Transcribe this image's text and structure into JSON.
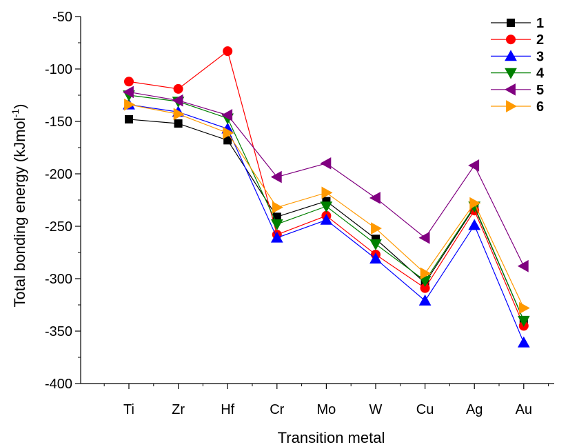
{
  "chart_data": {
    "type": "line",
    "xlabel": "Transition metal",
    "ylabel": "Total bonding energy (kJmol",
    "ylabel_superscript": "-1",
    "ylabel_suffix": ")",
    "categories": [
      "Ti",
      "Zr",
      "Hf",
      "Cr",
      "Mo",
      "W",
      "Cu",
      "Ag",
      "Au"
    ],
    "ylim": [
      -400,
      -50
    ],
    "yticks": [
      -400,
      -350,
      -300,
      -250,
      -200,
      -150,
      -100,
      -50
    ],
    "ytick_labels": [
      "-400",
      "-350",
      "-300",
      "-250",
      "-200",
      "-150",
      "-100",
      "-50"
    ],
    "grid": false,
    "legend_position": "top-right",
    "series": [
      {
        "name": "1",
        "color": "#000000",
        "marker": "square",
        "values": [
          -148,
          -152,
          -168,
          -241,
          -226,
          -262,
          -304,
          -232,
          -340
        ]
      },
      {
        "name": "2",
        "color": "#ff0000",
        "marker": "circle",
        "values": [
          -112,
          -119,
          -83,
          -258,
          -240,
          -277,
          -309,
          -235,
          -345
        ]
      },
      {
        "name": "3",
        "color": "#0000ff",
        "marker": "triangle-up",
        "values": [
          -134,
          -141,
          -157,
          -261,
          -244,
          -281,
          -321,
          -249,
          -361
        ]
      },
      {
        "name": "4",
        "color": "#008000",
        "marker": "triangle-down",
        "values": [
          -125,
          -131,
          -147,
          -248,
          -231,
          -267,
          -302,
          -231,
          -340
        ]
      },
      {
        "name": "5",
        "color": "#800080",
        "marker": "triangle-left",
        "values": [
          -122,
          -130,
          -144,
          -203,
          -190,
          -223,
          -261,
          -192,
          -288
        ]
      },
      {
        "name": "6",
        "color": "#ff9900",
        "marker": "triangle-right",
        "values": [
          -134,
          -143,
          -161,
          -232,
          -218,
          -252,
          -295,
          -228,
          -328
        ]
      }
    ]
  }
}
